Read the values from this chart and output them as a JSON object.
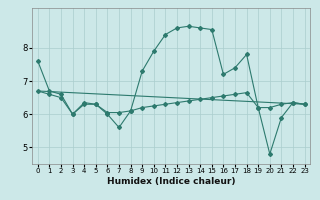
{
  "xlabel": "Humidex (Indice chaleur)",
  "ylabel": "",
  "bg_color": "#cce8e8",
  "grid_color": "#aacece",
  "line_color": "#2d7a6e",
  "xlim": [
    -0.5,
    23.5
  ],
  "ylim": [
    4.5,
    9.2
  ],
  "yticks": [
    5,
    6,
    7,
    8
  ],
  "xticks": [
    0,
    1,
    2,
    3,
    4,
    5,
    6,
    7,
    8,
    9,
    10,
    11,
    12,
    13,
    14,
    15,
    16,
    17,
    18,
    19,
    20,
    21,
    22,
    23
  ],
  "lines": [
    {
      "x": [
        0,
        1,
        2,
        3,
        4,
        5,
        6,
        7,
        8,
        9,
        10,
        11,
        12,
        13,
        14,
        15,
        16,
        17,
        18,
        19,
        20,
        21,
        22,
        23
      ],
      "y": [
        7.6,
        6.7,
        6.6,
        6.0,
        6.3,
        6.3,
        6.0,
        5.6,
        6.1,
        7.3,
        7.9,
        8.4,
        8.6,
        8.65,
        8.6,
        8.55,
        7.2,
        7.4,
        7.8,
        6.2,
        4.8,
        5.9,
        6.35,
        6.3
      ],
      "has_markers": true
    },
    {
      "x": [
        0,
        1,
        2,
        3,
        4,
        5,
        6,
        7,
        8,
        9,
        10,
        11,
        12,
        13,
        14,
        15,
        16,
        17,
        18,
        19,
        20,
        21,
        22,
        23
      ],
      "y": [
        6.7,
        6.6,
        6.5,
        6.0,
        6.35,
        6.3,
        6.05,
        6.05,
        6.1,
        6.2,
        6.25,
        6.3,
        6.35,
        6.4,
        6.45,
        6.5,
        6.55,
        6.6,
        6.65,
        6.2,
        6.2,
        6.3,
        6.35,
        6.3
      ],
      "has_markers": true
    },
    {
      "x": [
        0,
        23
      ],
      "y": [
        6.7,
        6.3
      ],
      "has_markers": false
    }
  ]
}
